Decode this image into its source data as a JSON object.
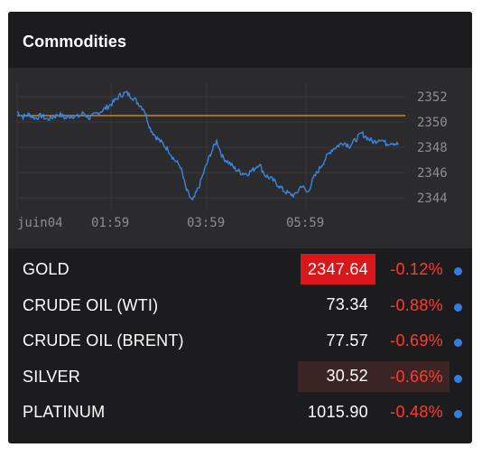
{
  "widget": {
    "title": "Commodities"
  },
  "chart": {
    "y_ticks": [
      "2352",
      "2350",
      "2348",
      "2346",
      "2344"
    ],
    "x_ticks": [
      "juin04",
      "01:59",
      "03:59",
      "05:59"
    ],
    "reference_value": "2350.5",
    "colors": {
      "line": "#3a85e0",
      "reference": "#c9822b",
      "background": "#2b2b2d",
      "grid": "#3a3a3d"
    }
  },
  "chart_data": {
    "type": "line",
    "title": "",
    "xlabel": "",
    "ylabel": "",
    "x_ticks": [
      "juin04",
      "01:59",
      "03:59",
      "05:59"
    ],
    "ylim": [
      2343,
      2353
    ],
    "reference_line": 2350.5,
    "series": [
      {
        "values": [
          2350.8,
          2350.4,
          2350.6,
          2350.3,
          2350.5,
          2350.2,
          2350.4,
          2350.6,
          2350.3,
          2350.5,
          2350.4,
          2350.7,
          2350.3,
          2350.6,
          2350.9,
          2351.2,
          2351.6,
          2352.1,
          2352.3,
          2352.0,
          2351.5,
          2351.0,
          2349.5,
          2348.8,
          2348.3,
          2347.8,
          2347.0,
          2346.5,
          2344.6,
          2343.7,
          2344.8,
          2346.2,
          2347.5,
          2348.5,
          2347.2,
          2346.8,
          2346.3,
          2346.0,
          2345.9,
          2346.2,
          2346.7,
          2345.8,
          2345.5,
          2345.1,
          2344.6,
          2344.3,
          2344.2,
          2345.0,
          2344.4,
          2345.5,
          2346.3,
          2347.1,
          2347.8,
          2348.1,
          2348.4,
          2348.1,
          2348.6,
          2349.1,
          2348.7,
          2348.4,
          2348.7,
          2348.3,
          2348.4,
          2348.2
        ]
      }
    ]
  },
  "rows": [
    {
      "name": "GOLD",
      "price": "2347.64",
      "change": "-0.12%"
    },
    {
      "name": "CRUDE OIL (WTI)",
      "price": "73.34",
      "change": "-0.88%"
    },
    {
      "name": "CRUDE OIL (BRENT)",
      "price": "77.57",
      "change": "-0.69%"
    },
    {
      "name": "SILVER",
      "price": "30.52",
      "change": "-0.66%"
    },
    {
      "name": "PLATINUM",
      "price": "1015.90",
      "change": "-0.48%"
    }
  ],
  "colors": {
    "panel_bg": "#1c1c1e",
    "negative": "#ff3b30",
    "indicator_dot": "#2f7ee6",
    "price_flash_down": "#d9161a",
    "price_flash_soft": "#3a2424"
  }
}
